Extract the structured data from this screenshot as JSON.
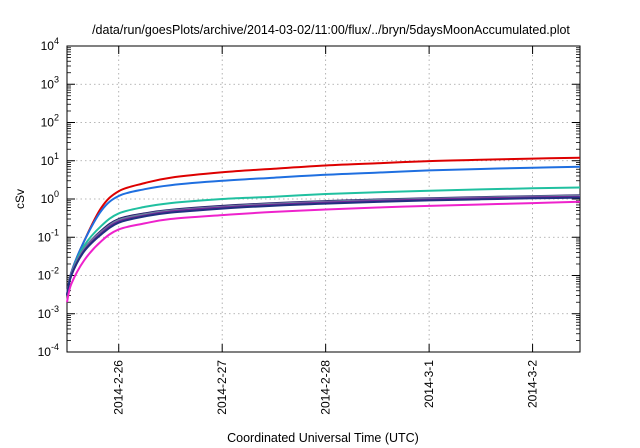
{
  "chart_data": {
    "type": "line",
    "title": "/data/run/goesPlots/archive/2014-03-02/11:00/flux/../bryn/5daysMoonAccumulated.plot",
    "xlabel": "Coordinated Universal Time (UTC)",
    "ylabel": "cSv",
    "y_scale": "log",
    "ylim": [
      0.0001,
      10000
    ],
    "xlim": [
      "2014-02-25 12:00",
      "2014-03-02 11:00"
    ],
    "grid": true,
    "legend": "none",
    "x_ticks": [
      {
        "date": "2014-02-26 00:00",
        "label": "2014-2-26"
      },
      {
        "date": "2014-02-27 00:00",
        "label": "2014-2-27"
      },
      {
        "date": "2014-02-28 00:00",
        "label": "2014-2-28"
      },
      {
        "date": "2014-03-01 00:00",
        "label": "2014-3-1"
      },
      {
        "date": "2014-03-02 00:00",
        "label": "2014-3-2"
      }
    ],
    "y_ticks": [
      {
        "value": 0.0001,
        "base": "10",
        "exp": "-4"
      },
      {
        "value": 0.001,
        "base": "10",
        "exp": "-3"
      },
      {
        "value": 0.01,
        "base": "10",
        "exp": "-2"
      },
      {
        "value": 0.1,
        "base": "10",
        "exp": "-1"
      },
      {
        "value": 1,
        "base": "10",
        "exp": "0"
      },
      {
        "value": 10,
        "base": "10",
        "exp": "1"
      },
      {
        "value": 100,
        "base": "10",
        "exp": "2"
      },
      {
        "value": 1000,
        "base": "10",
        "exp": "3"
      },
      {
        "value": 10000,
        "base": "10",
        "exp": "4"
      }
    ],
    "x": [
      "2014-02-25 12:00",
      "2014-02-25 13:00",
      "2014-02-25 16:00",
      "2014-02-25 20:00",
      "2014-02-26 00:00",
      "2014-02-26 06:00",
      "2014-02-26 12:00",
      "2014-02-27 00:00",
      "2014-02-27 12:00",
      "2014-02-28 00:00",
      "2014-02-28 12:00",
      "2014-03-01 00:00",
      "2014-03-01 12:00",
      "2014-03-02 00:00",
      "2014-03-02 11:00"
    ],
    "series": [
      {
        "color": "#dd0000",
        "values": [
          0.003,
          0.012,
          0.08,
          0.6,
          1.6,
          2.6,
          3.6,
          5.0,
          6.2,
          7.5,
          8.6,
          9.8,
          10.6,
          11.4,
          12.0
        ]
      },
      {
        "color": "#1f6fe0",
        "values": [
          0.003,
          0.012,
          0.08,
          0.5,
          1.2,
          1.8,
          2.3,
          3.0,
          3.6,
          4.3,
          4.9,
          5.6,
          6.1,
          6.6,
          7.0
        ]
      },
      {
        "color": "#20c0a0",
        "values": [
          0.003,
          0.011,
          0.06,
          0.2,
          0.42,
          0.62,
          0.78,
          1.0,
          1.15,
          1.35,
          1.5,
          1.65,
          1.78,
          1.9,
          2.0
        ]
      },
      {
        "color": "#2b1a6e",
        "values": [
          0.003,
          0.011,
          0.05,
          0.15,
          0.3,
          0.42,
          0.52,
          0.66,
          0.78,
          0.88,
          0.97,
          1.05,
          1.12,
          1.19,
          1.25
        ]
      },
      {
        "color": "#6a8aa0",
        "values": [
          0.003,
          0.011,
          0.05,
          0.14,
          0.28,
          0.4,
          0.5,
          0.63,
          0.75,
          0.85,
          0.94,
          1.02,
          1.09,
          1.16,
          1.21
        ]
      },
      {
        "color": "#7a2a9a",
        "values": [
          0.003,
          0.01,
          0.045,
          0.13,
          0.26,
          0.37,
          0.47,
          0.6,
          0.71,
          0.81,
          0.89,
          0.97,
          1.04,
          1.1,
          1.15
        ]
      },
      {
        "color": "#203080",
        "values": [
          0.003,
          0.01,
          0.043,
          0.12,
          0.24,
          0.35,
          0.44,
          0.56,
          0.67,
          0.76,
          0.84,
          0.92,
          0.98,
          1.04,
          1.09
        ]
      },
      {
        "color": "#ee22cc",
        "values": [
          0.002,
          0.006,
          0.025,
          0.08,
          0.16,
          0.23,
          0.3,
          0.38,
          0.46,
          0.53,
          0.6,
          0.66,
          0.72,
          0.78,
          0.85
        ]
      }
    ]
  }
}
